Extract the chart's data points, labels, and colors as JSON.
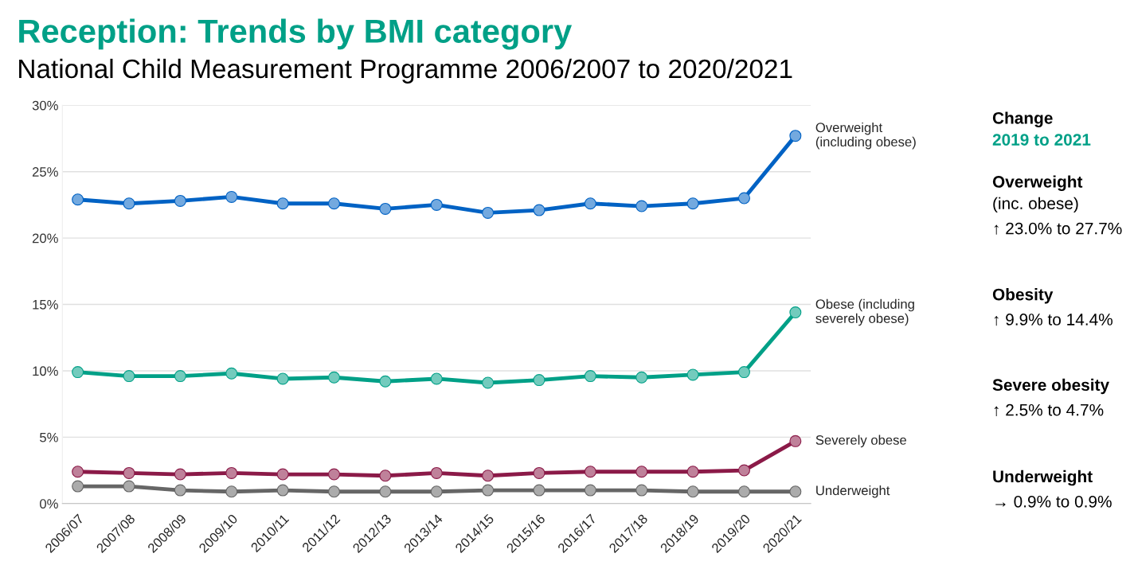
{
  "chart_data": {
    "type": "line",
    "title": "Reception: Trends by BMI category",
    "subtitle": "National Child Measurement Programme 2006/2007 to 2020/2021",
    "categories": [
      "2006/07",
      "2007/08",
      "2008/09",
      "2009/10",
      "2010/11",
      "2011/12",
      "2012/13",
      "2013/14",
      "2014/15",
      "2015/16",
      "2016/17",
      "2017/18",
      "2018/19",
      "2019/20",
      "2020/21"
    ],
    "series": [
      {
        "name": "Overweight (including obese)",
        "color": "#0062c4",
        "values": [
          22.9,
          22.6,
          22.8,
          23.1,
          22.6,
          22.6,
          22.2,
          22.5,
          21.9,
          22.1,
          22.6,
          22.4,
          22.6,
          23.0,
          27.7
        ]
      },
      {
        "name": "Obese (including severely obese)",
        "color": "#00a087",
        "values": [
          9.9,
          9.6,
          9.6,
          9.8,
          9.4,
          9.5,
          9.2,
          9.4,
          9.1,
          9.3,
          9.6,
          9.5,
          9.7,
          9.9,
          14.4
        ]
      },
      {
        "name": "Severely obese",
        "color": "#8b1a48",
        "values": [
          2.4,
          2.3,
          2.2,
          2.3,
          2.2,
          2.2,
          2.1,
          2.3,
          2.1,
          2.3,
          2.4,
          2.4,
          2.4,
          2.5,
          4.7
        ]
      },
      {
        "name": "Underweight",
        "color": "#666666",
        "values": [
          1.3,
          1.3,
          1.0,
          0.9,
          1.0,
          0.9,
          0.9,
          0.9,
          1.0,
          1.0,
          1.0,
          1.0,
          0.9,
          0.9,
          0.9
        ]
      }
    ],
    "ylim": [
      0,
      30
    ],
    "yticks": [
      {
        "value": 0,
        "label": "0%"
      },
      {
        "value": 5,
        "label": "5%"
      },
      {
        "value": 10,
        "label": "10%"
      },
      {
        "value": 15,
        "label": "15%"
      },
      {
        "value": 20,
        "label": "20%"
      },
      {
        "value": 25,
        "label": "25%"
      },
      {
        "value": 30,
        "label": "30%"
      }
    ],
    "grid": "y",
    "marker": "circle",
    "line_style": "solid",
    "annotations": [
      "Change",
      "2019 to 2021",
      "Overweight",
      "(inc. obese)",
      "↑ 23.0% to 27.7%",
      "Obesity",
      "↑ 9.9% to 14.4%",
      "Severe obesity",
      "↑ 2.5% to 4.7%",
      "Underweight",
      "→ 0.9% to 0.9%"
    ]
  }
}
